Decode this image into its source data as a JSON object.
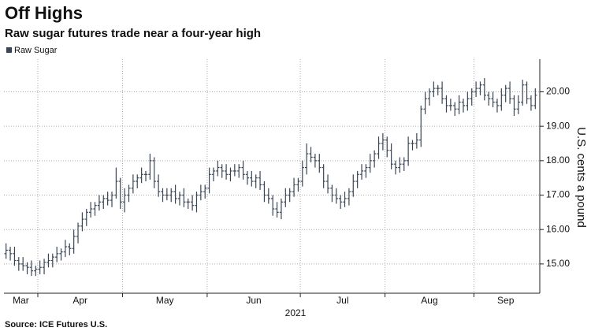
{
  "chart_data": {
    "type": "ohlc",
    "title": "Off Highs",
    "subtitle": "Raw sugar futures trade near a four-year high",
    "ylabel": "U.S. cents a pound",
    "xlabel": "2021",
    "source": "Source: ICE Futures U.S.",
    "grid": true,
    "ylim": [
      14.15,
      20.95
    ],
    "yticks": [
      {
        "value": 15,
        "label": "15.00"
      },
      {
        "value": 16,
        "label": "16.00"
      },
      {
        "value": 17,
        "label": "17.00"
      },
      {
        "value": 18,
        "label": "18.00"
      },
      {
        "value": 19,
        "label": "19.00"
      },
      {
        "value": 20,
        "label": "20.00"
      }
    ],
    "categories": [
      "Mar",
      "Mar",
      "Mar",
      "Mar",
      "Mar",
      "Mar",
      "Mar",
      "Mar",
      "Apr",
      "Apr",
      "Apr",
      "Apr",
      "Apr",
      "Apr",
      "Apr",
      "Apr",
      "Apr",
      "Apr",
      "Apr",
      "Apr",
      "Apr",
      "Apr",
      "Apr",
      "Apr",
      "Apr",
      "Apr",
      "Apr",
      "Apr",
      "May",
      "May",
      "May",
      "May",
      "May",
      "May",
      "May",
      "May",
      "May",
      "May",
      "May",
      "May",
      "May",
      "May",
      "May",
      "May",
      "May",
      "May",
      "May",
      "May",
      "Jun",
      "Jun",
      "Jun",
      "Jun",
      "Jun",
      "Jun",
      "Jun",
      "Jun",
      "Jun",
      "Jun",
      "Jun",
      "Jun",
      "Jun",
      "Jun",
      "Jun",
      "Jun",
      "Jun",
      "Jun",
      "Jun",
      "Jun",
      "Jun",
      "Jun",
      "Jul",
      "Jul",
      "Jul",
      "Jul",
      "Jul",
      "Jul",
      "Jul",
      "Jul",
      "Jul",
      "Jul",
      "Jul",
      "Jul",
      "Jul",
      "Jul",
      "Jul",
      "Jul",
      "Jul",
      "Jul",
      "Jul",
      "Jul",
      "Aug",
      "Aug",
      "Aug",
      "Aug",
      "Aug",
      "Aug",
      "Aug",
      "Aug",
      "Aug",
      "Aug",
      "Aug",
      "Aug",
      "Aug",
      "Aug",
      "Aug",
      "Aug",
      "Aug",
      "Aug",
      "Aug",
      "Aug",
      "Aug",
      "Sep",
      "Sep",
      "Sep",
      "Sep",
      "Sep",
      "Sep",
      "Sep",
      "Sep",
      "Sep",
      "Sep",
      "Sep",
      "Sep",
      "Sep",
      "Sep",
      "Sep"
    ],
    "series": [
      {
        "name": "Raw Sugar",
        "color": "#3a4656",
        "open": [
          15.3,
          15.4,
          15.3,
          15.1,
          15.0,
          14.95,
          14.9,
          14.8,
          14.85,
          14.9,
          15.05,
          15.1,
          15.2,
          15.3,
          15.35,
          15.5,
          15.45,
          15.8,
          16.1,
          16.3,
          16.5,
          16.6,
          16.7,
          16.8,
          16.9,
          16.85,
          17.0,
          17.4,
          16.8,
          17.0,
          17.2,
          17.4,
          17.5,
          17.6,
          17.6,
          18.0,
          17.4,
          17.1,
          17.0,
          17.0,
          17.1,
          16.9,
          17.0,
          16.8,
          16.8,
          16.7,
          17.0,
          17.1,
          17.2,
          17.6,
          17.7,
          17.8,
          17.7,
          17.6,
          17.7,
          17.7,
          17.8,
          17.6,
          17.5,
          17.4,
          17.5,
          17.3,
          17.0,
          16.9,
          16.6,
          16.5,
          16.8,
          17.0,
          17.1,
          17.3,
          17.4,
          17.8,
          18.2,
          18.1,
          18.0,
          17.8,
          17.4,
          17.2,
          17.0,
          16.9,
          16.8,
          16.9,
          17.1,
          17.4,
          17.6,
          17.7,
          17.8,
          18.0,
          18.2,
          18.5,
          18.6,
          18.3,
          17.9,
          17.8,
          17.9,
          18.0,
          18.5,
          18.5,
          18.6,
          19.5,
          19.8,
          20.0,
          20.1,
          20.1,
          19.8,
          19.6,
          19.6,
          19.5,
          19.7,
          19.6,
          19.8,
          20.0,
          20.1,
          20.2,
          19.9,
          19.8,
          19.7,
          19.6,
          19.9,
          20.1,
          19.8,
          19.5,
          19.7,
          20.2,
          19.8,
          19.6
        ],
        "high": [
          15.6,
          15.5,
          15.5,
          15.2,
          15.2,
          15.05,
          15.1,
          14.95,
          15.1,
          15.15,
          15.3,
          15.3,
          15.5,
          15.45,
          15.7,
          15.6,
          16.0,
          16.2,
          16.5,
          16.6,
          16.8,
          16.8,
          17.0,
          17.0,
          17.1,
          17.1,
          17.8,
          17.5,
          17.2,
          17.3,
          17.6,
          17.6,
          17.8,
          17.7,
          18.2,
          18.1,
          17.6,
          17.2,
          17.2,
          17.2,
          17.3,
          17.1,
          17.2,
          16.9,
          17.0,
          17.1,
          17.3,
          17.3,
          17.8,
          17.8,
          18.0,
          17.9,
          17.9,
          17.8,
          17.9,
          17.9,
          18.0,
          17.7,
          17.7,
          17.6,
          17.7,
          17.4,
          17.2,
          17.0,
          16.8,
          16.9,
          17.2,
          17.2,
          17.5,
          17.5,
          18.0,
          18.5,
          18.4,
          18.2,
          18.2,
          17.9,
          17.6,
          17.3,
          17.2,
          17.0,
          17.1,
          17.2,
          17.6,
          17.7,
          17.9,
          17.9,
          18.2,
          18.3,
          18.7,
          18.8,
          18.7,
          18.5,
          18.0,
          18.1,
          18.1,
          18.7,
          18.6,
          18.8,
          19.6,
          20.0,
          20.1,
          20.3,
          20.2,
          20.3,
          19.9,
          19.8,
          19.7,
          19.9,
          19.8,
          20.0,
          20.1,
          20.3,
          20.3,
          20.4,
          20.0,
          20.0,
          19.8,
          20.1,
          20.2,
          20.3,
          19.9,
          19.9,
          20.35,
          20.3,
          19.9,
          20.1
        ],
        "low": [
          15.15,
          15.1,
          14.95,
          14.8,
          14.8,
          14.7,
          14.65,
          14.65,
          14.7,
          14.7,
          14.9,
          14.9,
          15.05,
          15.1,
          15.2,
          15.25,
          15.3,
          15.6,
          15.95,
          16.1,
          16.35,
          16.4,
          16.55,
          16.6,
          16.7,
          16.65,
          16.9,
          16.6,
          16.5,
          16.8,
          17.05,
          17.2,
          17.35,
          17.4,
          17.45,
          17.2,
          16.95,
          16.8,
          16.85,
          16.8,
          16.75,
          16.7,
          16.65,
          16.6,
          16.55,
          16.5,
          16.85,
          16.9,
          17.05,
          17.4,
          17.55,
          17.5,
          17.45,
          17.4,
          17.55,
          17.5,
          17.45,
          17.3,
          17.25,
          17.2,
          17.15,
          16.8,
          16.75,
          16.4,
          16.35,
          16.3,
          16.65,
          16.8,
          16.95,
          17.1,
          17.25,
          17.6,
          17.95,
          17.8,
          17.65,
          17.2,
          17.05,
          16.8,
          16.75,
          16.6,
          16.65,
          16.7,
          16.95,
          17.2,
          17.45,
          17.5,
          17.65,
          17.8,
          18.05,
          18.3,
          18.1,
          17.75,
          17.6,
          17.65,
          17.7,
          17.85,
          18.3,
          18.35,
          18.4,
          19.35,
          19.6,
          19.85,
          19.9,
          19.65,
          19.4,
          19.45,
          19.3,
          19.35,
          19.4,
          19.45,
          19.6,
          19.85,
          19.9,
          19.75,
          19.6,
          19.55,
          19.4,
          19.45,
          19.7,
          19.65,
          19.3,
          19.35,
          19.6,
          19.65,
          19.45,
          19.5
        ],
        "close": [
          15.4,
          15.3,
          15.1,
          15.0,
          14.95,
          14.9,
          14.8,
          14.85,
          14.9,
          15.05,
          15.1,
          15.2,
          15.3,
          15.35,
          15.5,
          15.45,
          15.8,
          16.1,
          16.3,
          16.5,
          16.6,
          16.7,
          16.8,
          16.9,
          16.85,
          17.0,
          17.4,
          16.8,
          17.0,
          17.2,
          17.4,
          17.5,
          17.6,
          17.6,
          18.0,
          17.4,
          17.1,
          17.0,
          17.0,
          17.1,
          16.9,
          17.0,
          16.8,
          16.8,
          16.7,
          17.0,
          17.1,
          17.2,
          17.6,
          17.7,
          17.8,
          17.7,
          17.6,
          17.7,
          17.7,
          17.8,
          17.6,
          17.5,
          17.4,
          17.5,
          17.3,
          17.0,
          16.9,
          16.6,
          16.5,
          16.8,
          17.0,
          17.1,
          17.3,
          17.4,
          17.8,
          18.2,
          18.1,
          18.0,
          17.8,
          17.4,
          17.2,
          17.0,
          16.9,
          16.8,
          16.9,
          17.1,
          17.4,
          17.6,
          17.7,
          17.8,
          18.0,
          18.2,
          18.5,
          18.6,
          18.3,
          17.9,
          17.8,
          17.9,
          18.0,
          18.5,
          18.5,
          18.6,
          19.5,
          19.8,
          20.0,
          20.1,
          20.1,
          19.8,
          19.6,
          19.6,
          19.5,
          19.7,
          19.6,
          19.8,
          20.0,
          20.1,
          20.2,
          19.9,
          19.8,
          19.7,
          19.6,
          19.9,
          20.1,
          19.8,
          19.5,
          19.7,
          20.2,
          19.8,
          19.6,
          19.9
        ]
      }
    ]
  }
}
